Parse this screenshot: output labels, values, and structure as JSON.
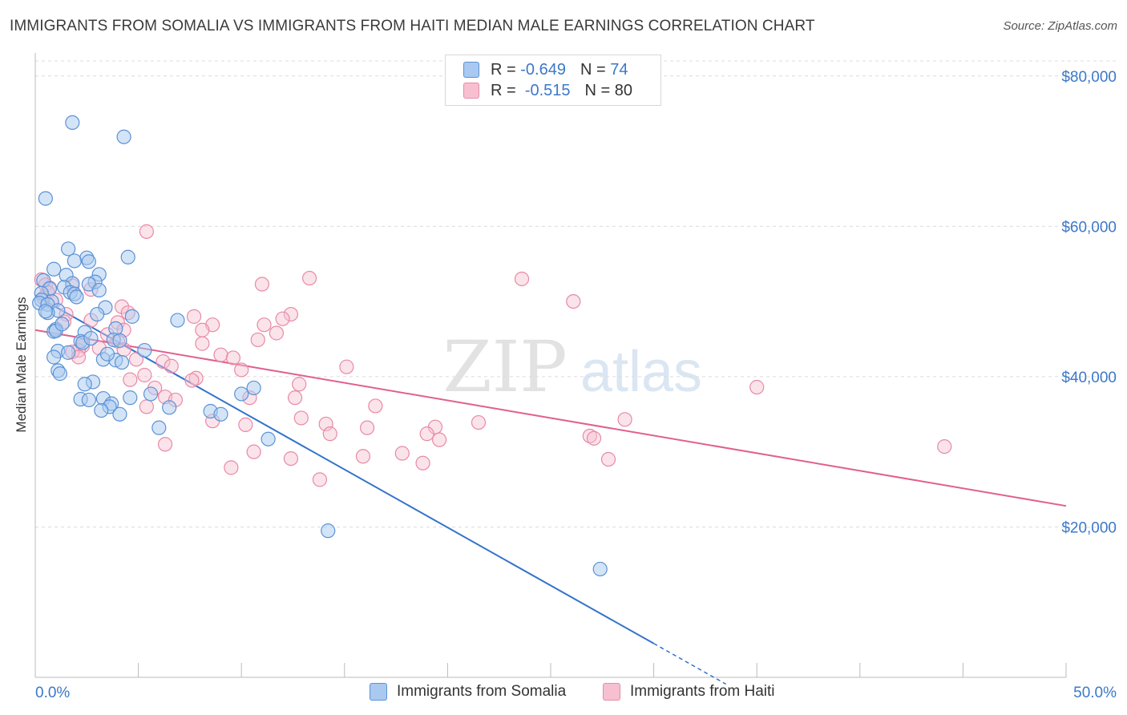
{
  "header": {
    "title": "IMMIGRANTS FROM SOMALIA VS IMMIGRANTS FROM HAITI MEDIAN MALE EARNINGS CORRELATION CHART",
    "source": "Source: ZipAtlas.com"
  },
  "watermark": {
    "zip": "ZIP",
    "atlas": "atlas"
  },
  "legend_top": {
    "rows": [
      {
        "r_label": "R =",
        "r_value": "-0.649",
        "n_label": "N =",
        "n_value": "74"
      },
      {
        "r_label": "R =",
        "r_value": "-0.515",
        "n_label": "N = 80",
        "n_value": ""
      }
    ]
  },
  "legend_bottom": {
    "items": [
      {
        "label": "Immigrants from Somalia"
      },
      {
        "label": "Immigrants from Haiti"
      }
    ]
  },
  "colors": {
    "somalia_fill": "#a9c9f0",
    "somalia_stroke": "#5b92d6",
    "somalia_line": "#3373cc",
    "haiti_fill": "#f6c0d0",
    "haiti_stroke": "#e88aa8",
    "haiti_line": "#e0608e",
    "axis_text": "#3c78c8",
    "grid": "#dcdcdc"
  },
  "chart_data": {
    "type": "scatter",
    "title": "IMMIGRANTS FROM SOMALIA VS IMMIGRANTS FROM HAITI MEDIAN MALE EARNINGS CORRELATION CHART",
    "xlabel": "",
    "ylabel": "Median Male Earnings",
    "xlim": [
      0,
      50
    ],
    "ylim": [
      0,
      82000
    ],
    "x_tick_labels": [
      {
        "value": 0,
        "label": "0.0%"
      },
      {
        "value": 50,
        "label": "50.0%"
      }
    ],
    "y_tick_labels": [
      {
        "value": 20000,
        "label": "$20,000"
      },
      {
        "value": 40000,
        "label": "$40,000"
      },
      {
        "value": 60000,
        "label": "$60,000"
      },
      {
        "value": 80000,
        "label": "$80,000"
      }
    ],
    "grid": true,
    "legend_position": "top-center",
    "series": [
      {
        "name": "Immigrants from Somalia",
        "R": -0.649,
        "N": 74,
        "trend": {
          "x0": 0,
          "y0": 50800,
          "x1": 30,
          "y1": 4500,
          "dashed_to_x": 33.5
        },
        "points": [
          [
            1.8,
            73800
          ],
          [
            4.3,
            71900
          ],
          [
            0.5,
            63700
          ],
          [
            1.6,
            57000
          ],
          [
            4.5,
            55900
          ],
          [
            2.5,
            55800
          ],
          [
            1.9,
            55400
          ],
          [
            2.6,
            55300
          ],
          [
            0.9,
            54300
          ],
          [
            3.1,
            53600
          ],
          [
            1.5,
            53500
          ],
          [
            0.4,
            52800
          ],
          [
            2.9,
            52600
          ],
          [
            1.8,
            52400
          ],
          [
            2.6,
            52300
          ],
          [
            1.4,
            51900
          ],
          [
            0.7,
            51700
          ],
          [
            3.1,
            51500
          ],
          [
            1.7,
            51200
          ],
          [
            0.3,
            51100
          ],
          [
            1.9,
            51000
          ],
          [
            2.0,
            50600
          ],
          [
            0.3,
            50200
          ],
          [
            0.8,
            50000
          ],
          [
            0.2,
            49800
          ],
          [
            0.6,
            49600
          ],
          [
            3.4,
            49200
          ],
          [
            1.1,
            48800
          ],
          [
            0.6,
            48500
          ],
          [
            3.0,
            48300
          ],
          [
            4.7,
            48000
          ],
          [
            6.9,
            47500
          ],
          [
            1.0,
            46300
          ],
          [
            3.9,
            46400
          ],
          [
            0.9,
            46000
          ],
          [
            2.4,
            45900
          ],
          [
            3.8,
            44900
          ],
          [
            4.1,
            44800
          ],
          [
            2.2,
            44700
          ],
          [
            2.3,
            44500
          ],
          [
            1.1,
            43400
          ],
          [
            5.3,
            43500
          ],
          [
            1.6,
            43200
          ],
          [
            0.9,
            42600
          ],
          [
            3.3,
            42300
          ],
          [
            3.9,
            42200
          ],
          [
            4.2,
            41900
          ],
          [
            1.1,
            40800
          ],
          [
            1.2,
            40400
          ],
          [
            2.8,
            39300
          ],
          [
            2.4,
            39000
          ],
          [
            10.6,
            38500
          ],
          [
            5.6,
            37700
          ],
          [
            10.0,
            37700
          ],
          [
            4.6,
            37200
          ],
          [
            3.3,
            37100
          ],
          [
            2.2,
            37000
          ],
          [
            2.6,
            36900
          ],
          [
            3.7,
            36400
          ],
          [
            3.6,
            36000
          ],
          [
            6.5,
            35900
          ],
          [
            3.2,
            35500
          ],
          [
            8.5,
            35400
          ],
          [
            9.0,
            35000
          ],
          [
            4.1,
            35000
          ],
          [
            6.0,
            33200
          ],
          [
            11.3,
            31700
          ],
          [
            14.2,
            19500
          ],
          [
            27.4,
            14400
          ],
          [
            1.0,
            46100
          ],
          [
            2.7,
            45100
          ],
          [
            3.5,
            43000
          ],
          [
            0.5,
            48700
          ],
          [
            1.3,
            47000
          ]
        ]
      },
      {
        "name": "Immigrants from Haiti",
        "R": -0.515,
        "N": 80,
        "trend": {
          "x0": 0,
          "y0": 46200,
          "x1": 50,
          "y1": 22800
        },
        "points": [
          [
            5.4,
            59300
          ],
          [
            13.3,
            53100
          ],
          [
            23.6,
            53000
          ],
          [
            0.3,
            52900
          ],
          [
            11.0,
            52300
          ],
          [
            0.5,
            52200
          ],
          [
            1.8,
            52100
          ],
          [
            0.7,
            51800
          ],
          [
            2.7,
            51600
          ],
          [
            0.6,
            51200
          ],
          [
            0.4,
            50500
          ],
          [
            1.0,
            50200
          ],
          [
            26.1,
            50000
          ],
          [
            4.2,
            49300
          ],
          [
            4.5,
            48500
          ],
          [
            1.5,
            48300
          ],
          [
            12.4,
            48300
          ],
          [
            7.7,
            48000
          ],
          [
            12.0,
            47700
          ],
          [
            2.7,
            47500
          ],
          [
            1.4,
            47300
          ],
          [
            4.0,
            47200
          ],
          [
            8.6,
            46900
          ],
          [
            11.1,
            46900
          ],
          [
            4.3,
            46200
          ],
          [
            8.1,
            46200
          ],
          [
            11.7,
            45800
          ],
          [
            3.5,
            45600
          ],
          [
            10.8,
            44900
          ],
          [
            4.0,
            44700
          ],
          [
            8.1,
            44400
          ],
          [
            2.3,
            44100
          ],
          [
            3.1,
            43800
          ],
          [
            4.3,
            43600
          ],
          [
            2.1,
            43500
          ],
          [
            1.8,
            43300
          ],
          [
            9.0,
            42900
          ],
          [
            9.6,
            42500
          ],
          [
            2.1,
            42600
          ],
          [
            4.9,
            42300
          ],
          [
            6.2,
            42000
          ],
          [
            6.6,
            41400
          ],
          [
            15.1,
            41300
          ],
          [
            10.0,
            40900
          ],
          [
            5.3,
            40200
          ],
          [
            7.8,
            39800
          ],
          [
            4.6,
            39600
          ],
          [
            7.6,
            39500
          ],
          [
            12.8,
            39000
          ],
          [
            35.0,
            38600
          ],
          [
            5.8,
            38500
          ],
          [
            10.4,
            37200
          ],
          [
            6.3,
            37300
          ],
          [
            12.6,
            37200
          ],
          [
            6.8,
            36900
          ],
          [
            16.5,
            36100
          ],
          [
            5.4,
            36000
          ],
          [
            12.9,
            34500
          ],
          [
            28.6,
            34300
          ],
          [
            8.6,
            34100
          ],
          [
            21.5,
            33900
          ],
          [
            14.1,
            33700
          ],
          [
            10.2,
            33600
          ],
          [
            19.4,
            33300
          ],
          [
            16.1,
            33200
          ],
          [
            14.3,
            32400
          ],
          [
            19.0,
            32400
          ],
          [
            26.9,
            32100
          ],
          [
            27.1,
            31800
          ],
          [
            19.6,
            31600
          ],
          [
            6.3,
            31000
          ],
          [
            44.1,
            30700
          ],
          [
            10.6,
            30000
          ],
          [
            17.8,
            29800
          ],
          [
            15.9,
            29400
          ],
          [
            12.4,
            29100
          ],
          [
            27.8,
            29000
          ],
          [
            18.8,
            28500
          ],
          [
            9.5,
            27900
          ],
          [
            13.8,
            26300
          ]
        ]
      }
    ]
  }
}
